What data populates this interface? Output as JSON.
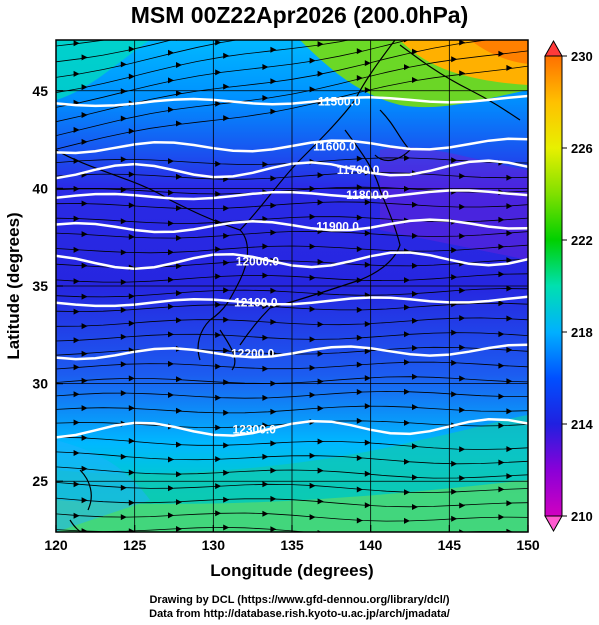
{
  "title": "MSM 00Z22Apr2026 (200.0hPa)",
  "map": {
    "xlabel": "Longitude (degrees)",
    "ylabel": "Latitude  (degrees)",
    "xlim": [
      120,
      150
    ],
    "ylim": [
      22.4,
      47.6
    ],
    "x_ticks": [
      120,
      125,
      130,
      135,
      140,
      145,
      150
    ],
    "y_ticks": [
      25,
      30,
      35,
      40,
      45
    ],
    "grid": true,
    "contour_labels": [
      {
        "text": "11500.0",
        "lon": 138.0,
        "lat": 44.5
      },
      {
        "text": "11600.0",
        "lon": 137.7,
        "lat": 42.2
      },
      {
        "text": "11700.0",
        "lon": 139.2,
        "lat": 41.0
      },
      {
        "text": "11800.0",
        "lon": 139.8,
        "lat": 39.7
      },
      {
        "text": "11900.0",
        "lon": 137.9,
        "lat": 38.1
      },
      {
        "text": "12000.0",
        "lon": 132.8,
        "lat": 36.3
      },
      {
        "text": "12100.0",
        "lon": 132.7,
        "lat": 34.2
      },
      {
        "text": "12200.0",
        "lon": 132.5,
        "lat": 31.6
      },
      {
        "text": "12300.0",
        "lon": 132.6,
        "lat": 27.7
      }
    ]
  },
  "colorbar": {
    "min": 210,
    "max": 230,
    "ticks": [
      "230",
      "226",
      "222",
      "218",
      "214",
      "210"
    ],
    "colors": [
      "#d000c0",
      "#8a00d8",
      "#2020e0",
      "#0050ff",
      "#00b0ff",
      "#00e0b0",
      "#00d000",
      "#80e000",
      "#e8f000",
      "#ffc000",
      "#ff7000",
      "#ff3000"
    ]
  },
  "credits": [
    "Drawing by DCL (https://www.gfd-dennou.org/library/dcl/)",
    "Data from http://database.rish.kyoto-u.ac.jp/arch/jmadata/"
  ]
}
